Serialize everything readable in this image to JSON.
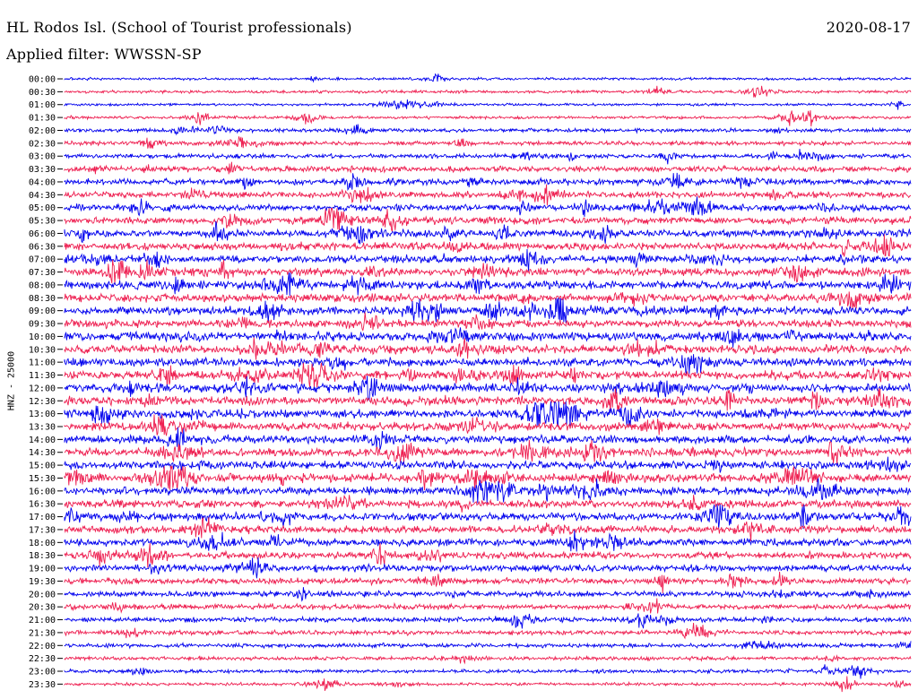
{
  "header": {
    "station": "HL Rodos Isl. (School of Tourist professionals)",
    "date": "2020-08-17",
    "filter": "Applied filter: WWSSN-SP"
  },
  "chart_data": {
    "type": "line",
    "title": "HL Rodos Isl. (School of Tourist professionals)",
    "ylabel": "HNZ - 25000",
    "tick_labels": [
      "00:00",
      "00:30",
      "01:00",
      "01:30",
      "02:00",
      "02:30",
      "03:00",
      "03:30",
      "04:00",
      "04:30",
      "05:00",
      "05:30",
      "06:00",
      "06:30",
      "07:00",
      "07:30",
      "08:00",
      "08:30",
      "09:00",
      "09:30",
      "10:00",
      "10:30",
      "11:00",
      "11:30",
      "12:00",
      "12:30",
      "13:00",
      "13:30",
      "14:00",
      "14:30",
      "15:00",
      "15:30",
      "16:00",
      "16:30",
      "17:00",
      "17:30",
      "18:00",
      "18:30",
      "19:00",
      "19:30",
      "20:00",
      "20:30",
      "21:00",
      "21:30",
      "22:00",
      "22:30",
      "23:00",
      "23:30"
    ],
    "trace_colors": [
      "#0000ee",
      "#ee1e50"
    ],
    "series": [
      {
        "amplitude_level": 0.15
      },
      {
        "amplitude_level": 0.2
      },
      {
        "amplitude_level": 0.15
      },
      {
        "amplitude_level": 0.2
      },
      {
        "amplitude_level": 0.3
      },
      {
        "amplitude_level": 0.35
      },
      {
        "amplitude_level": 0.4
      },
      {
        "amplitude_level": 0.55
      },
      {
        "amplitude_level": 0.6
      },
      {
        "amplitude_level": 0.65
      },
      {
        "amplitude_level": 0.7
      },
      {
        "amplitude_level": 0.75
      },
      {
        "amplitude_level": 0.75
      },
      {
        "amplitude_level": 0.8
      },
      {
        "amplitude_level": 0.8
      },
      {
        "amplitude_level": 0.8
      },
      {
        "amplitude_level": 0.85
      },
      {
        "amplitude_level": 0.85
      },
      {
        "amplitude_level": 0.85
      },
      {
        "amplitude_level": 0.85
      },
      {
        "amplitude_level": 0.9
      },
      {
        "amplitude_level": 0.9
      },
      {
        "amplitude_level": 0.9
      },
      {
        "amplitude_level": 0.9
      },
      {
        "amplitude_level": 0.95
      },
      {
        "amplitude_level": 0.95
      },
      {
        "amplitude_level": 0.9
      },
      {
        "amplitude_level": 0.9
      },
      {
        "amplitude_level": 0.9
      },
      {
        "amplitude_level": 0.9
      },
      {
        "amplitude_level": 0.9
      },
      {
        "amplitude_level": 0.9
      },
      {
        "amplitude_level": 0.85
      },
      {
        "amplitude_level": 0.85
      },
      {
        "amplitude_level": 0.8
      },
      {
        "amplitude_level": 0.8
      },
      {
        "amplitude_level": 0.75
      },
      {
        "amplitude_level": 0.7
      },
      {
        "amplitude_level": 0.7
      },
      {
        "amplitude_level": 0.6
      },
      {
        "amplitude_level": 0.55
      },
      {
        "amplitude_level": 0.5
      },
      {
        "amplitude_level": 0.45
      },
      {
        "amplitude_level": 0.4
      },
      {
        "amplitude_level": 0.35
      },
      {
        "amplitude_level": 0.3
      },
      {
        "amplitude_level": 0.25
      },
      {
        "amplitude_level": 0.2
      }
    ]
  }
}
